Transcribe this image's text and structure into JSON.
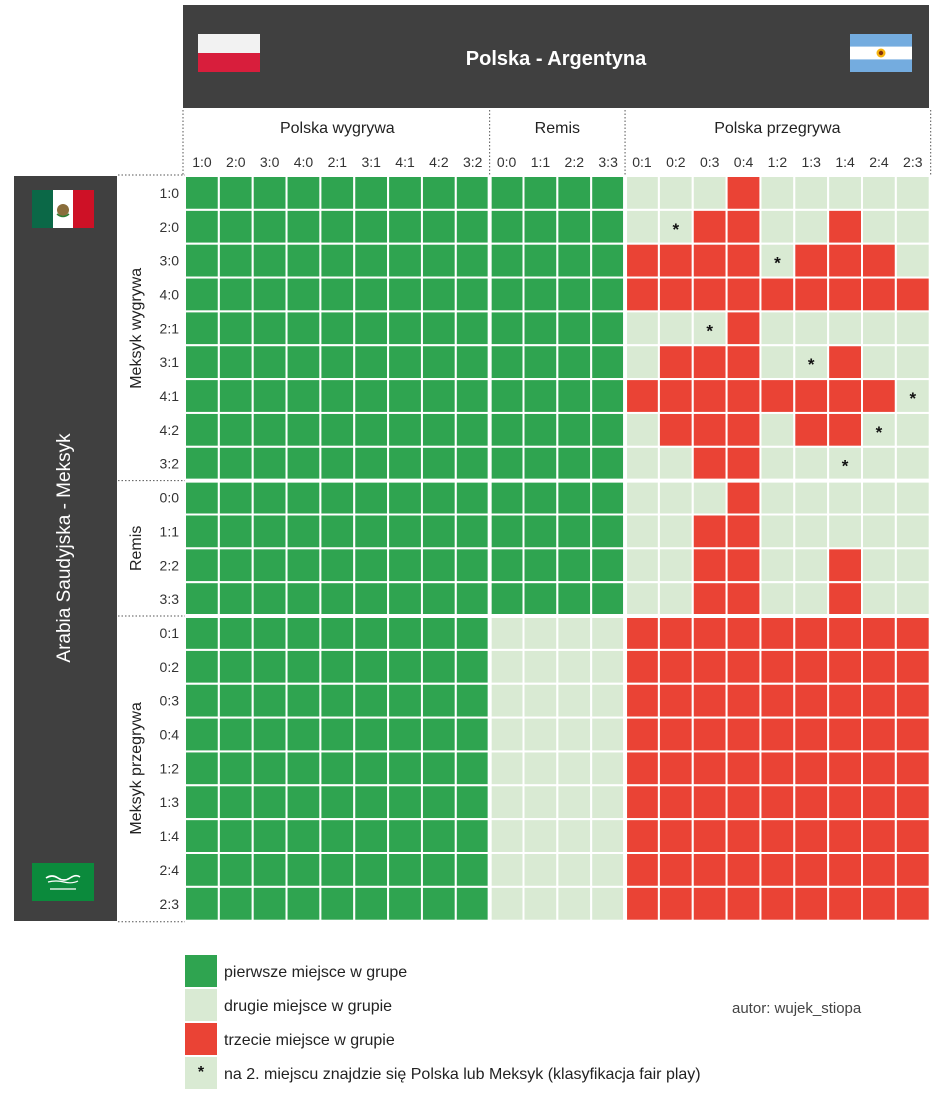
{
  "header": {
    "title": "Polska - Argentyna"
  },
  "sidebar": {
    "title": "Arabia Saudyjska - Meksyk"
  },
  "colors": {
    "first": "#2fa450",
    "second": "#d9ead3",
    "third": "#ea4335",
    "dark": "#404040"
  },
  "icons": {
    "poland_flag": "poland-flag-icon",
    "argentina_flag": "argentina-flag-icon",
    "mexico_flag": "mexico-flag-icon",
    "saudi_flag": "saudi-flag-icon"
  },
  "chart_data": {
    "type": "heatmap",
    "title": "Polska - Argentyna",
    "ylabel": "Arabia Saudyjska - Meksyk",
    "column_groups": [
      {
        "label": "Polska wygrywa",
        "columns": [
          "1:0",
          "2:0",
          "3:0",
          "4:0",
          "2:1",
          "3:1",
          "4:1",
          "4:2",
          "3:2"
        ]
      },
      {
        "label": "Remis",
        "columns": [
          "0:0",
          "1:1",
          "2:2",
          "3:3"
        ]
      },
      {
        "label": "Polska przegrywa",
        "columns": [
          "0:1",
          "0:2",
          "0:3",
          "0:4",
          "1:2",
          "1:3",
          "1:4",
          "2:4",
          "2:3"
        ]
      }
    ],
    "row_groups": [
      {
        "label": "Meksyk wygrywa",
        "rows": [
          "1:0",
          "2:0",
          "3:0",
          "4:0",
          "2:1",
          "3:1",
          "4:1",
          "4:2",
          "3:2"
        ]
      },
      {
        "label": "Remis",
        "rows": [
          "0:0",
          "1:1",
          "2:2",
          "3:3"
        ]
      },
      {
        "label": "Meksyk przegrywa",
        "rows": [
          "0:1",
          "0:2",
          "0:3",
          "0:4",
          "1:2",
          "1:3",
          "1:4",
          "2:4",
          "2:3"
        ]
      }
    ],
    "value_legend": {
      "1": "pierwsze miejsce w grupe",
      "2": "drugie miejsce w grupie",
      "3": "trzecie miejsce w grupie"
    },
    "values": [
      [
        1,
        1,
        1,
        1,
        1,
        1,
        1,
        1,
        1,
        1,
        1,
        1,
        1,
        2,
        2,
        2,
        3,
        2,
        2,
        2,
        2,
        2
      ],
      [
        1,
        1,
        1,
        1,
        1,
        1,
        1,
        1,
        1,
        1,
        1,
        1,
        1,
        2,
        2,
        3,
        3,
        2,
        2,
        3,
        2,
        2
      ],
      [
        1,
        1,
        1,
        1,
        1,
        1,
        1,
        1,
        1,
        1,
        1,
        1,
        1,
        3,
        3,
        3,
        3,
        2,
        3,
        3,
        3,
        2
      ],
      [
        1,
        1,
        1,
        1,
        1,
        1,
        1,
        1,
        1,
        1,
        1,
        1,
        1,
        3,
        3,
        3,
        3,
        3,
        3,
        3,
        3,
        3
      ],
      [
        1,
        1,
        1,
        1,
        1,
        1,
        1,
        1,
        1,
        1,
        1,
        1,
        1,
        2,
        2,
        2,
        3,
        2,
        2,
        2,
        2,
        2
      ],
      [
        1,
        1,
        1,
        1,
        1,
        1,
        1,
        1,
        1,
        1,
        1,
        1,
        1,
        2,
        3,
        3,
        3,
        2,
        2,
        3,
        2,
        2
      ],
      [
        1,
        1,
        1,
        1,
        1,
        1,
        1,
        1,
        1,
        1,
        1,
        1,
        1,
        3,
        3,
        3,
        3,
        3,
        3,
        3,
        3,
        2
      ],
      [
        1,
        1,
        1,
        1,
        1,
        1,
        1,
        1,
        1,
        1,
        1,
        1,
        1,
        2,
        3,
        3,
        3,
        2,
        3,
        3,
        2,
        2
      ],
      [
        1,
        1,
        1,
        1,
        1,
        1,
        1,
        1,
        1,
        1,
        1,
        1,
        1,
        2,
        2,
        3,
        3,
        2,
        2,
        2,
        2,
        2
      ],
      [
        1,
        1,
        1,
        1,
        1,
        1,
        1,
        1,
        1,
        1,
        1,
        1,
        1,
        2,
        2,
        2,
        3,
        2,
        2,
        2,
        2,
        2
      ],
      [
        1,
        1,
        1,
        1,
        1,
        1,
        1,
        1,
        1,
        1,
        1,
        1,
        1,
        2,
        2,
        3,
        3,
        2,
        2,
        2,
        2,
        2
      ],
      [
        1,
        1,
        1,
        1,
        1,
        1,
        1,
        1,
        1,
        1,
        1,
        1,
        1,
        2,
        2,
        3,
        3,
        2,
        2,
        3,
        2,
        2
      ],
      [
        1,
        1,
        1,
        1,
        1,
        1,
        1,
        1,
        1,
        1,
        1,
        1,
        1,
        2,
        2,
        3,
        3,
        2,
        2,
        3,
        2,
        2
      ],
      [
        1,
        1,
        1,
        1,
        1,
        1,
        1,
        1,
        1,
        2,
        2,
        2,
        2,
        3,
        3,
        3,
        3,
        3,
        3,
        3,
        3,
        3
      ],
      [
        1,
        1,
        1,
        1,
        1,
        1,
        1,
        1,
        1,
        2,
        2,
        2,
        2,
        3,
        3,
        3,
        3,
        3,
        3,
        3,
        3,
        3
      ],
      [
        1,
        1,
        1,
        1,
        1,
        1,
        1,
        1,
        1,
        2,
        2,
        2,
        2,
        3,
        3,
        3,
        3,
        3,
        3,
        3,
        3,
        3
      ],
      [
        1,
        1,
        1,
        1,
        1,
        1,
        1,
        1,
        1,
        2,
        2,
        2,
        2,
        3,
        3,
        3,
        3,
        3,
        3,
        3,
        3,
        3
      ],
      [
        1,
        1,
        1,
        1,
        1,
        1,
        1,
        1,
        1,
        2,
        2,
        2,
        2,
        3,
        3,
        3,
        3,
        3,
        3,
        3,
        3,
        3
      ],
      [
        1,
        1,
        1,
        1,
        1,
        1,
        1,
        1,
        1,
        2,
        2,
        2,
        2,
        3,
        3,
        3,
        3,
        3,
        3,
        3,
        3,
        3
      ],
      [
        1,
        1,
        1,
        1,
        1,
        1,
        1,
        1,
        1,
        2,
        2,
        2,
        2,
        3,
        3,
        3,
        3,
        3,
        3,
        3,
        3,
        3
      ],
      [
        1,
        1,
        1,
        1,
        1,
        1,
        1,
        1,
        1,
        2,
        2,
        2,
        2,
        3,
        3,
        3,
        3,
        3,
        3,
        3,
        3,
        3
      ],
      [
        1,
        1,
        1,
        1,
        1,
        1,
        1,
        1,
        1,
        2,
        2,
        2,
        2,
        3,
        3,
        3,
        3,
        3,
        3,
        3,
        3,
        3
      ]
    ],
    "fair_play_cells": [
      {
        "row": "2:0",
        "col": "0:2"
      },
      {
        "row": "3:0",
        "col": "1:2"
      },
      {
        "row": "2:1",
        "col": "0:3"
      },
      {
        "row": "3:1",
        "col": "1:3"
      },
      {
        "row": "4:1",
        "col": "2:3"
      },
      {
        "row": "4:2",
        "col": "2:4"
      },
      {
        "row": "3:2",
        "col": "1:4"
      }
    ],
    "fair_play_marker": "*"
  },
  "legend": {
    "first_label": "pierwsze miejsce w grupe",
    "second_label": "drugie miejsce w grupie",
    "third_label": "trzecie miejsce w grupie",
    "star_symbol": "*",
    "star_label": "na 2. miejscu znajdzie się Polska lub Meksyk (klasyfikacja fair play)"
  },
  "author": "autor: wujek_stiopa"
}
